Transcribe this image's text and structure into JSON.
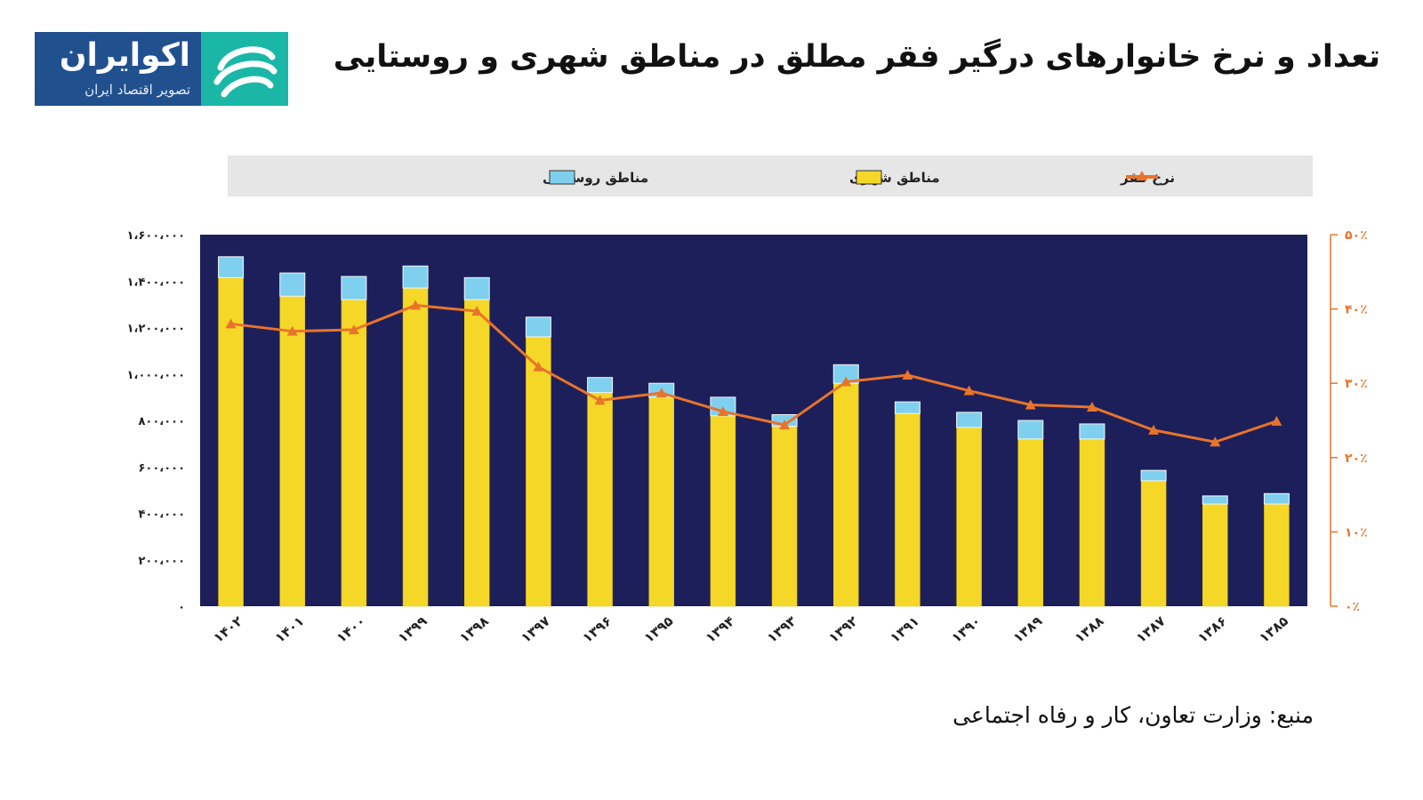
{
  "logo": {
    "name": "اکوایران",
    "tagline": "تصویر اقتصاد ایران"
  },
  "title": "تعداد و نرخ خانوارهای درگیر فقر مطلق در مناطق شهری و روستایی",
  "source": "منبع: وزارت تعاون، کار و رفاه اجتماعی",
  "colors": {
    "plot_bg": "#1d1f5b",
    "urban": "#f5d728",
    "rural": "#7fd0ef",
    "rate": "#e8742a",
    "legend_bg": "#e6e6e6"
  },
  "chart_data": {
    "type": "bar",
    "stacked": true,
    "categories": [
      "۱۴۰۲",
      "۱۴۰۱",
      "۱۴۰۰",
      "۱۳۹۹",
      "۱۳۹۸",
      "۱۳۹۷",
      "۱۳۹۶",
      "۱۳۹۵",
      "۱۳۹۴",
      "۱۳۹۳",
      "۱۳۹۲",
      "۱۳۹۱",
      "۱۳۹۰",
      "۱۳۸۹",
      "۱۳۸۸",
      "۱۳۸۷",
      "۱۳۸۶",
      "۱۳۸۵"
    ],
    "series": [
      {
        "name": "مناطق شهری",
        "values": [
          1415000,
          1335000,
          1320000,
          1370000,
          1320000,
          1160000,
          920000,
          900000,
          820000,
          775000,
          960000,
          830000,
          770000,
          720000,
          720000,
          540000,
          440000,
          440000
        ]
      },
      {
        "name": "مناطق روستایی",
        "values": [
          90000,
          100000,
          100000,
          95000,
          95000,
          85000,
          65000,
          60000,
          80000,
          50000,
          80000,
          50000,
          65000,
          80000,
          65000,
          45000,
          35000,
          45000
        ]
      },
      {
        "name": "نرخ فقر",
        "axis": "right",
        "type": "line",
        "values": [
          38,
          37,
          37.2,
          40.5,
          39.7,
          32.2,
          27.7,
          28.7,
          26.2,
          24.4,
          30.2,
          31.1,
          29,
          27.1,
          26.8,
          23.7,
          22.1,
          24.9
        ]
      }
    ],
    "y_ticks_left": [
      "۰",
      "۲۰۰،۰۰۰",
      "۴۰۰،۰۰۰",
      "۶۰۰،۰۰۰",
      "۸۰۰،۰۰۰",
      "۱،۰۰۰،۰۰۰",
      "۱،۲۰۰،۰۰۰",
      "۱،۴۰۰،۰۰۰",
      "۱،۶۰۰،۰۰۰"
    ],
    "y_ticks_right": [
      "۰٪",
      "۱۰٪",
      "۲۰٪",
      "۳۰٪",
      "۴۰٪",
      "۵۰٪"
    ],
    "ylim_left": [
      0,
      1600000
    ],
    "ylim_right": [
      0,
      50
    ],
    "legend": [
      "مناطق روستایی",
      "مناطق شهری",
      "نرخ فقر"
    ],
    "legend_position": "top",
    "xlabel": "",
    "ylabel": ""
  }
}
